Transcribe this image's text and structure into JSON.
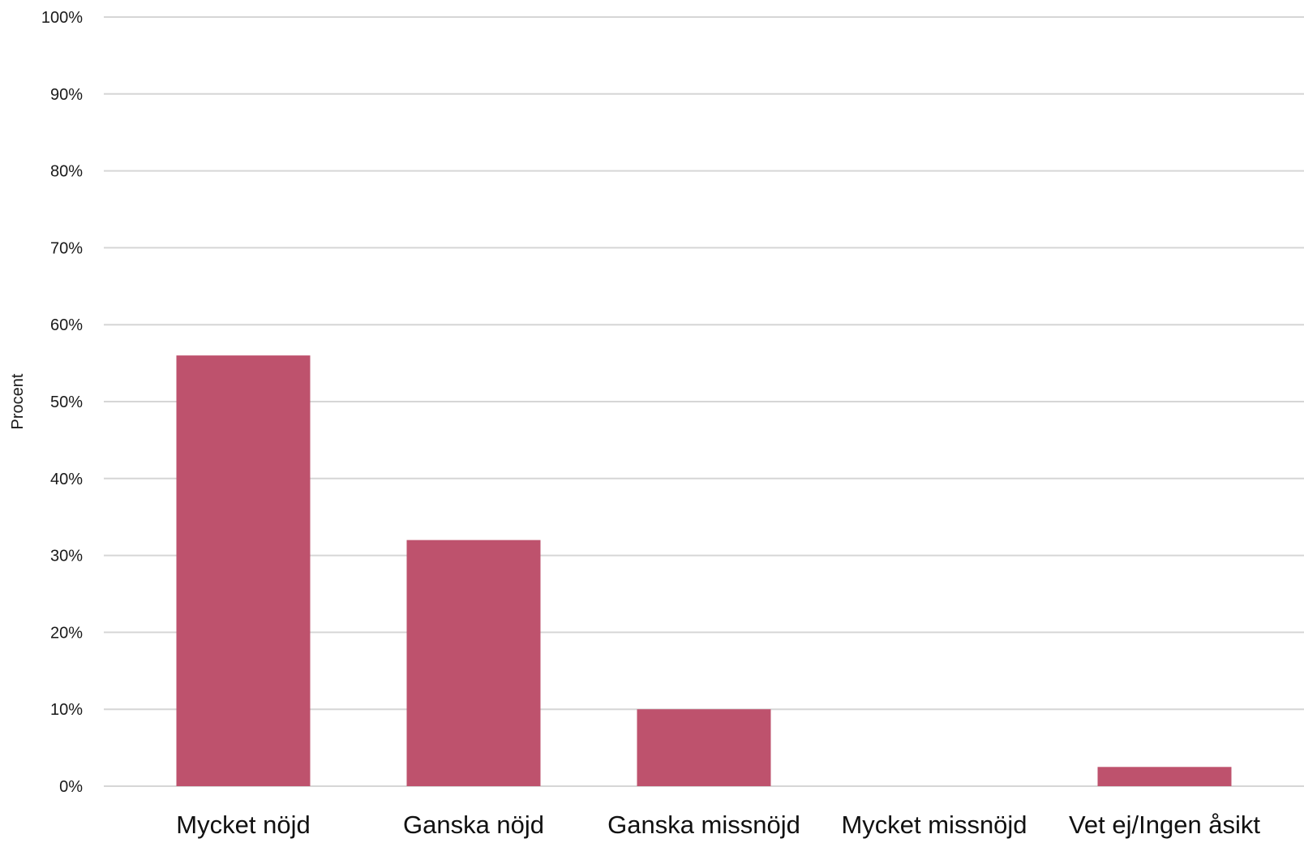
{
  "chart_data": {
    "type": "bar",
    "title": "",
    "xlabel": "",
    "ylabel": "Procent",
    "categories": [
      "Mycket nöjd",
      "Ganska nöjd",
      "Ganska missnöjd",
      "Mycket missnöjd",
      "Vet ej/Ingen åsikt"
    ],
    "values": [
      56,
      32,
      10,
      0,
      2.5
    ],
    "ylim": [
      0,
      100
    ],
    "yticks": [
      "0%",
      "10%",
      "20%",
      "30%",
      "40%",
      "50%",
      "60%",
      "70%",
      "80%",
      "90%",
      "100%"
    ],
    "grid": true,
    "legend": "none",
    "colors": {
      "bar": "#be526d",
      "grid": "#d6d6d6"
    }
  }
}
